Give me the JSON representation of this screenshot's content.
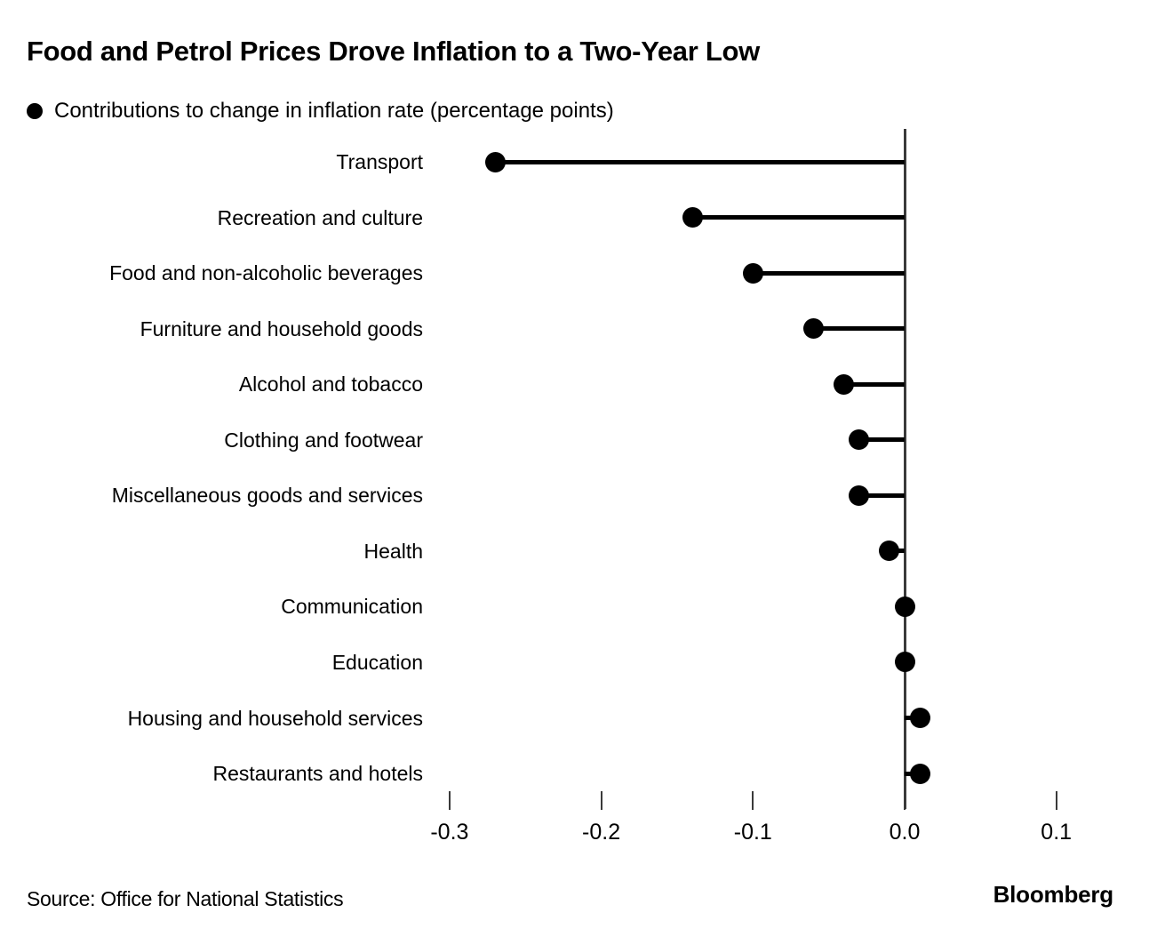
{
  "header": {
    "title": "Food and Petrol Prices Drove Inflation to a Two-Year Low",
    "legend_label": "Contributions to change in inflation rate (percentage points)"
  },
  "chart_data": {
    "type": "bar",
    "variant": "lollipop",
    "orientation": "horizontal",
    "title": "Food and Petrol Prices Drove Inflation to a Two-Year Low",
    "legend": "Contributions to change in inflation rate (percentage points)",
    "categories": [
      "Transport",
      "Recreation and culture",
      "Food and non-alcoholic beverages",
      "Furniture and household goods",
      "Alcohol and tobacco",
      "Clothing and footwear",
      "Miscellaneous goods and services",
      "Health",
      "Communication",
      "Education",
      "Housing and household services",
      "Restaurants and hotels"
    ],
    "values": [
      -0.27,
      -0.14,
      -0.1,
      -0.06,
      -0.04,
      -0.03,
      -0.03,
      -0.01,
      0.0,
      0.0,
      0.01,
      0.01
    ],
    "xlabel": "",
    "ylabel": "",
    "x_axis": {
      "ticks": [
        -0.3,
        -0.2,
        -0.1,
        0.0,
        0.1
      ],
      "tick_labels": [
        "-0.3",
        "-0.2",
        "-0.1",
        "0.0",
        "0.1"
      ],
      "xlim": [
        -0.31,
        0.145
      ],
      "grid": false
    },
    "legend_position": "top-left",
    "colors": {
      "dot": "#000000",
      "stem": "#000000",
      "axis": "#3a3a3a",
      "text": "#000000",
      "background": "#ffffff"
    }
  },
  "footer": {
    "source": "Source: Office for National Statistics",
    "brand": "Bloomberg"
  }
}
